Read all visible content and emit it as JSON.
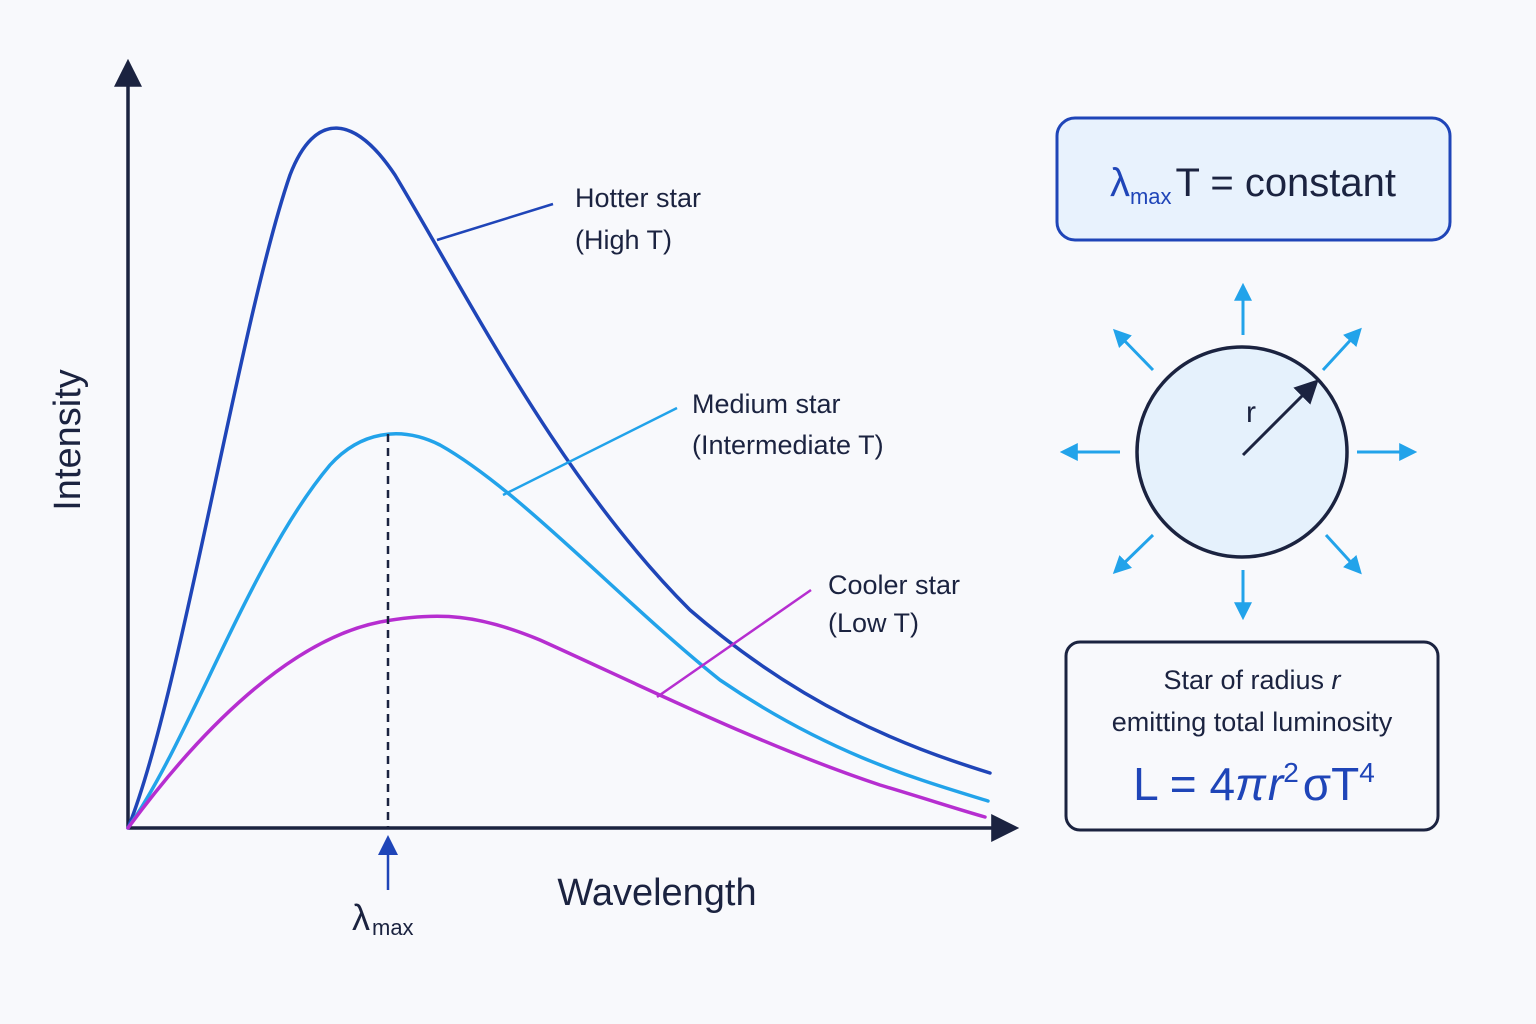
{
  "colors": {
    "axis": "#1b2340",
    "hot": "#1f45b8",
    "medium": "#22a3ea",
    "cool": "#b62ed0",
    "accent_text": "#1f45b8",
    "box_fill": "#e8f2fd",
    "box_stroke": "#1f45b8",
    "ray": "#22a3ea"
  },
  "graph": {
    "y_axis_title": "Intensity",
    "x_axis_title": "Wavelength",
    "lambda_symbol": "λ",
    "lambda_sub": "max"
  },
  "curves": {
    "hot": {
      "line1": "Hotter star",
      "line2": "(High T)"
    },
    "medium": {
      "line1": "Medium star",
      "line2": "(Intermediate T)"
    },
    "cool": {
      "line1": "Cooler star",
      "line2": "(Low T)"
    }
  },
  "wien": {
    "symbol": "λ",
    "sub": "max",
    "rest": "T = constant"
  },
  "star": {
    "radius_label": "r"
  },
  "luminosity": {
    "line1_text": "Star of radius ",
    "line1_var": "r",
    "line2": "emitting total luminosity",
    "formula_L": "L = 4",
    "formula_pi": "π",
    "formula_r": "r",
    "formula_exp2": "2",
    "formula_sigmaT": "σT",
    "formula_exp4": "4"
  }
}
